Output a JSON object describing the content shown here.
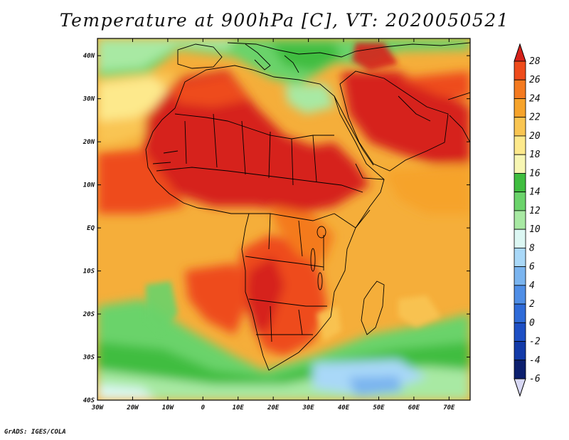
{
  "title": "Temperature at 900hPa [C], VT: 2020050521",
  "credit": "GrADS: IGES/COLA",
  "map": {
    "projection": "latlon",
    "lon_range": [
      -30,
      76
    ],
    "lat_range": [
      -40,
      44
    ],
    "lon_ticks": [
      "30W",
      "20W",
      "10W",
      "0",
      "10E",
      "20E",
      "30E",
      "40E",
      "50E",
      "60E",
      "70E"
    ],
    "lat_ticks": [
      "40N",
      "30N",
      "20N",
      "10N",
      "EQ",
      "10S",
      "20S",
      "30S",
      "40S"
    ],
    "ocean_color": "#f5ae3a",
    "land_color": "#ef4a1a"
  },
  "colorbar": {
    "labels": [
      "28",
      "26",
      "24",
      "22",
      "20",
      "18",
      "16",
      "14",
      "12",
      "10",
      "8",
      "6",
      "4",
      "2",
      "0",
      "-2",
      "-4",
      "-6"
    ],
    "colors": [
      "#d6221b",
      "#ee4b1b",
      "#f47a1f",
      "#f6a32b",
      "#f9c552",
      "#fde98c",
      "#f7f6b3",
      "#3fbd3f",
      "#6bd36b",
      "#a8e9a3",
      "#dcf7f3",
      "#a9d8f8",
      "#7ab4ef",
      "#4f8ee6",
      "#2f6bd8",
      "#1d4fc4",
      "#123aa8",
      "#0c1f6e",
      "#d8d8f4"
    ],
    "top_color": "#d6221b",
    "bottom_color": "#d8d8f4"
  }
}
